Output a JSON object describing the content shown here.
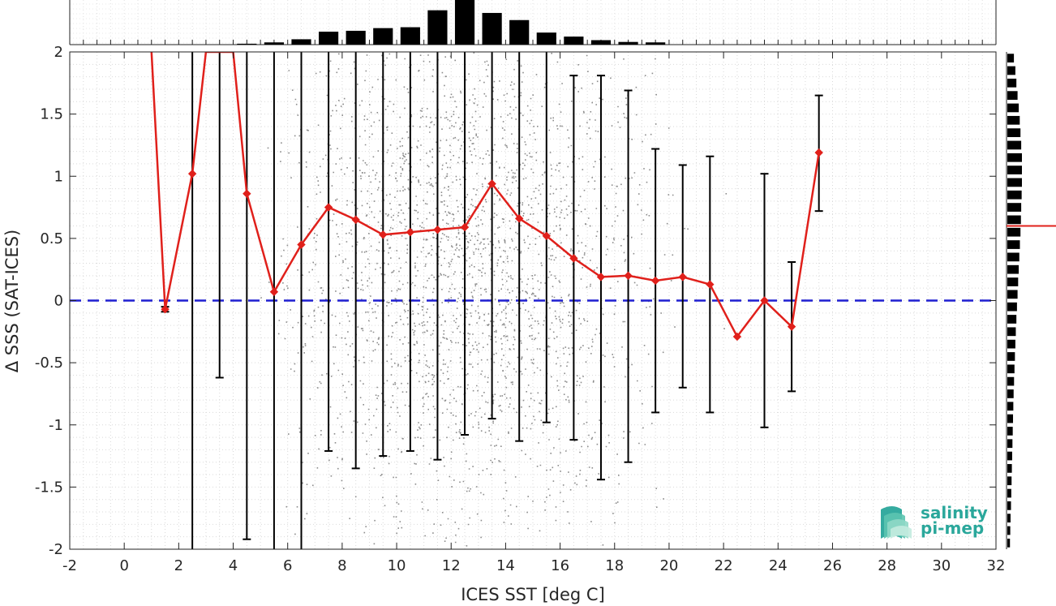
{
  "chart_data": {
    "type": "scatter",
    "xlabel": "ICES SST [deg C]",
    "ylabel": "Δ SSS (SAT-ICES)",
    "xlim": [
      -2,
      32
    ],
    "ylim": [
      -2,
      2
    ],
    "xticks": [
      -2,
      0,
      2,
      4,
      6,
      8,
      10,
      12,
      14,
      16,
      18,
      20,
      22,
      24,
      26,
      28,
      30,
      32
    ],
    "yticks": [
      -2,
      -1.5,
      -1,
      -0.5,
      0,
      0.5,
      1,
      1.5,
      2
    ],
    "grid": "dotted",
    "zero_line": {
      "y": 0,
      "style": "dashed",
      "color": "#1f1fd0"
    },
    "mean_line": {
      "color": "#e0201b",
      "marker": "diamond",
      "x": [
        1.0,
        1.5,
        2.5,
        3.0,
        4.0,
        4.5,
        5.5,
        6.5,
        7.5,
        8.5,
        9.5,
        10.5,
        11.5,
        12.5,
        13.5,
        14.5,
        15.5,
        16.5,
        17.5,
        18.5,
        19.5,
        20.5,
        21.5,
        22.5,
        23.5,
        24.5,
        25.5
      ],
      "y": [
        2.0,
        -0.07,
        1.02,
        2.0,
        2.0,
        0.86,
        0.07,
        0.45,
        0.75,
        0.65,
        0.53,
        0.55,
        0.57,
        0.59,
        0.94,
        0.66,
        0.52,
        0.34,
        0.19,
        0.2,
        0.16,
        0.19,
        0.13,
        -0.29,
        0.0,
        -0.21,
        1.19
      ],
      "marked": [
        false,
        true,
        true,
        false,
        false,
        true,
        true,
        true,
        true,
        true,
        true,
        true,
        true,
        true,
        true,
        true,
        true,
        true,
        true,
        true,
        true,
        true,
        true,
        true,
        true,
        true,
        true
      ]
    },
    "error_bars": [
      {
        "x": 1.5,
        "low": -0.09,
        "high": -0.05
      },
      {
        "x": 2.5,
        "low": -2.0,
        "high": 2.0
      },
      {
        "x": 3.5,
        "low": -0.62,
        "high": 2.0
      },
      {
        "x": 4.5,
        "low": -1.92,
        "high": 2.0
      },
      {
        "x": 5.5,
        "low": -2.0,
        "high": 2.0
      },
      {
        "x": 6.5,
        "low": -2.0,
        "high": 2.0
      },
      {
        "x": 7.5,
        "low": -1.21,
        "high": 2.0
      },
      {
        "x": 8.5,
        "low": -1.35,
        "high": 2.0
      },
      {
        "x": 9.5,
        "low": -1.25,
        "high": 2.0
      },
      {
        "x": 10.5,
        "low": -1.21,
        "high": 2.0
      },
      {
        "x": 11.5,
        "low": -1.28,
        "high": 2.0
      },
      {
        "x": 12.5,
        "low": -1.08,
        "high": 2.0
      },
      {
        "x": 13.5,
        "low": -0.95,
        "high": 2.0
      },
      {
        "x": 14.5,
        "low": -1.13,
        "high": 2.0
      },
      {
        "x": 15.5,
        "low": -0.98,
        "high": 2.0
      },
      {
        "x": 16.5,
        "low": -1.12,
        "high": 1.81
      },
      {
        "x": 17.5,
        "low": -1.44,
        "high": 1.81
      },
      {
        "x": 18.5,
        "low": -1.3,
        "high": 1.69
      },
      {
        "x": 19.5,
        "low": -0.9,
        "high": 1.22
      },
      {
        "x": 20.5,
        "low": -0.7,
        "high": 1.09
      },
      {
        "x": 21.5,
        "low": -0.9,
        "high": 1.16
      },
      {
        "x": 23.5,
        "low": -1.02,
        "high": 1.02
      },
      {
        "x": 24.5,
        "low": -0.73,
        "high": 0.31
      },
      {
        "x": 25.5,
        "low": 0.72,
        "high": 1.65
      }
    ],
    "top_histogram": {
      "bin_centers": [
        4.5,
        5.5,
        6.5,
        7.5,
        8.5,
        9.5,
        10.5,
        11.5,
        12.5,
        13.5,
        14.5,
        15.5,
        16.5,
        17.5,
        18.5,
        19.5
      ],
      "relative_counts": [
        0.02,
        0.05,
        0.12,
        0.29,
        0.31,
        0.37,
        0.39,
        0.77,
        1.0,
        0.71,
        0.55,
        0.27,
        0.18,
        0.1,
        0.06,
        0.05
      ]
    },
    "right_histogram": {
      "y_centers": [
        1.95,
        1.85,
        1.75,
        1.65,
        1.55,
        1.45,
        1.35,
        1.25,
        1.15,
        1.05,
        0.95,
        0.85,
        0.75,
        0.65,
        0.55,
        0.45,
        0.35,
        0.25,
        0.15,
        0.05,
        -0.05,
        -0.15,
        -0.25,
        -0.35,
        -0.45,
        -0.55,
        -0.65,
        -0.75,
        -0.85,
        -0.95,
        -1.05,
        -1.15,
        -1.25,
        -1.35,
        -1.45,
        -1.55,
        -1.65,
        -1.75,
        -1.85,
        -1.95
      ],
      "relative_counts": [
        0.45,
        0.55,
        0.62,
        0.7,
        0.78,
        0.85,
        0.9,
        0.95,
        1.0,
        1.0,
        1.0,
        0.98,
        0.95,
        0.93,
        0.9,
        0.86,
        0.82,
        0.78,
        0.74,
        0.7,
        0.66,
        0.62,
        0.58,
        0.55,
        0.52,
        0.49,
        0.46,
        0.43,
        0.41,
        0.39,
        0.37,
        0.35,
        0.33,
        0.31,
        0.29,
        0.27,
        0.25,
        0.22,
        0.2,
        0.18
      ],
      "mean_marker_y": 0.6
    },
    "scatter_cloud": {
      "color": "#8c8c8c",
      "x_range": [
        1,
        25
      ],
      "y_range": [
        -2,
        2
      ],
      "density_centre_x": 12.5
    }
  },
  "logo": {
    "line1": "salinity",
    "line2": "pi-mep",
    "color": "#2aa79b"
  }
}
